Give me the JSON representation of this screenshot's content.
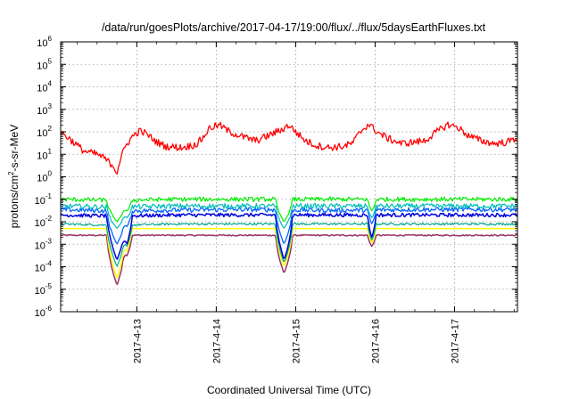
{
  "chart_data": {
    "type": "line",
    "title": "/data/run/goesPlots/archive/2017-04-17/19:00/flux/../flux/5daysEarthFluxes.txt",
    "xlabel": "Coordinated Universal Time (UTC)",
    "ylabel_parts": [
      "protons/cm",
      "2",
      "-s-sr-MeV"
    ],
    "y_scale": "log",
    "ylim": [
      1e-06,
      1000000.0
    ],
    "y_ticks": [
      {
        "base": "10",
        "exp": "-6"
      },
      {
        "base": "10",
        "exp": "-5"
      },
      {
        "base": "10",
        "exp": "-4"
      },
      {
        "base": "10",
        "exp": "-3"
      },
      {
        "base": "10",
        "exp": "-2"
      },
      {
        "base": "10",
        "exp": "-1"
      },
      {
        "base": "10",
        "exp": "0"
      },
      {
        "base": "10",
        "exp": "1"
      },
      {
        "base": "10",
        "exp": "2"
      },
      {
        "base": "10",
        "exp": "3"
      },
      {
        "base": "10",
        "exp": "4"
      },
      {
        "base": "10",
        "exp": "5"
      },
      {
        "base": "10",
        "exp": "6"
      }
    ],
    "xlim": [
      "2017-04-12T01:00",
      "2017-04-17T19:00"
    ],
    "x_ticks": [
      {
        "date": "2017-04-13",
        "label": "2017-4-13"
      },
      {
        "date": "2017-04-14",
        "label": "2017-4-14"
      },
      {
        "date": "2017-04-15",
        "label": "2017-4-15"
      },
      {
        "date": "2017-04-16",
        "label": "2017-4-16"
      },
      {
        "date": "2017-04-17",
        "label": "2017-4-17"
      }
    ],
    "grid": true,
    "series": [
      {
        "color": "#ff0000",
        "points": [
          [
            "2017-04-12T01:00",
            100
          ],
          [
            "2017-04-12T04:00",
            45
          ],
          [
            "2017-04-12T08:00",
            14
          ],
          [
            "2017-04-12T12:00",
            10
          ],
          [
            "2017-04-12T14:00",
            7
          ],
          [
            "2017-04-12T16:00",
            4
          ],
          [
            "2017-04-12T17:00",
            3
          ],
          [
            "2017-04-12T18:00",
            1.5
          ],
          [
            "2017-04-12T19:00",
            6
          ],
          [
            "2017-04-12T21:00",
            30
          ],
          [
            "2017-04-12T23:00",
            70
          ],
          [
            "2017-04-13T01:00",
            110
          ],
          [
            "2017-04-13T03:00",
            80
          ],
          [
            "2017-04-13T06:00",
            35
          ],
          [
            "2017-04-13T09:00",
            22
          ],
          [
            "2017-04-13T14:00",
            20
          ],
          [
            "2017-04-13T18:00",
            28
          ],
          [
            "2017-04-13T20:00",
            55
          ],
          [
            "2017-04-13T22:00",
            150
          ],
          [
            "2017-04-14T01:00",
            200
          ],
          [
            "2017-04-14T04:00",
            100
          ],
          [
            "2017-04-14T08:00",
            60
          ],
          [
            "2017-04-14T12:00",
            40
          ],
          [
            "2017-04-14T16:00",
            70
          ],
          [
            "2017-04-14T20:00",
            130
          ],
          [
            "2017-04-14T22:00",
            200
          ],
          [
            "2017-04-15T00:00",
            100
          ],
          [
            "2017-04-15T03:00",
            40
          ],
          [
            "2017-04-15T06:00",
            25
          ],
          [
            "2017-04-15T10:00",
            20
          ],
          [
            "2017-04-15T14:00",
            22
          ],
          [
            "2017-04-15T17:00",
            30
          ],
          [
            "2017-04-15T20:00",
            120
          ],
          [
            "2017-04-15T22:00",
            220
          ],
          [
            "2017-04-16T01:00",
            90
          ],
          [
            "2017-04-16T04:00",
            50
          ],
          [
            "2017-04-16T08:00",
            30
          ],
          [
            "2017-04-16T12:00",
            35
          ],
          [
            "2017-04-16T15:00",
            40
          ],
          [
            "2017-04-16T19:00",
            110
          ],
          [
            "2017-04-16T22:00",
            210
          ],
          [
            "2017-04-17T01:00",
            160
          ],
          [
            "2017-04-17T04:00",
            70
          ],
          [
            "2017-04-17T08:00",
            40
          ],
          [
            "2017-04-17T12:00",
            30
          ],
          [
            "2017-04-17T16:00",
            35
          ],
          [
            "2017-04-17T19:00",
            55
          ]
        ]
      },
      {
        "color": "#00ee00",
        "points": [
          [
            "2017-04-12T01:00",
            0.1
          ],
          [
            "2017-04-12T18:00",
            0.09
          ],
          [
            "2017-04-13T12:00",
            0.1
          ],
          [
            "2017-04-14T12:00",
            0.1
          ],
          [
            "2017-04-15T12:00",
            0.1
          ],
          [
            "2017-04-16T12:00",
            0.1
          ],
          [
            "2017-04-17T19:00",
            0.1
          ]
        ]
      },
      {
        "color": "#00bbbb",
        "points": [
          [
            "2017-04-12T01:00",
            0.05
          ],
          [
            "2017-04-12T18:00",
            0.045
          ],
          [
            "2017-04-13T12:00",
            0.05
          ],
          [
            "2017-04-14T12:00",
            0.05
          ],
          [
            "2017-04-15T12:00",
            0.05
          ],
          [
            "2017-04-16T12:00",
            0.05
          ],
          [
            "2017-04-17T19:00",
            0.05
          ]
        ]
      },
      {
        "color": "#0066ff",
        "points": [
          [
            "2017-04-12T01:00",
            0.035
          ],
          [
            "2017-04-12T18:00",
            0.03
          ],
          [
            "2017-04-13T12:00",
            0.033
          ],
          [
            "2017-04-14T12:00",
            0.035
          ],
          [
            "2017-04-15T12:00",
            0.032
          ],
          [
            "2017-04-16T12:00",
            0.035
          ],
          [
            "2017-04-17T19:00",
            0.035
          ]
        ]
      },
      {
        "color": "#0000dd",
        "points": [
          [
            "2017-04-12T01:00",
            0.02
          ],
          [
            "2017-04-12T18:00",
            0.018
          ],
          [
            "2017-04-13T12:00",
            0.02
          ],
          [
            "2017-04-14T12:00",
            0.02
          ],
          [
            "2017-04-15T12:00",
            0.02
          ],
          [
            "2017-04-16T12:00",
            0.02
          ],
          [
            "2017-04-17T19:00",
            0.02
          ]
        ]
      },
      {
        "color": "#00aa88",
        "points": [
          [
            "2017-04-12T01:00",
            0.008
          ],
          [
            "2017-04-12T18:00",
            0.007
          ],
          [
            "2017-04-13T12:00",
            0.008
          ],
          [
            "2017-04-14T12:00",
            0.008
          ],
          [
            "2017-04-15T12:00",
            0.008
          ],
          [
            "2017-04-16T12:00",
            0.008
          ],
          [
            "2017-04-17T19:00",
            0.008
          ]
        ]
      },
      {
        "color": "#ffff00",
        "points": [
          [
            "2017-04-12T01:00",
            0.005
          ],
          [
            "2017-04-12T18:00",
            0.005
          ],
          [
            "2017-04-13T12:00",
            0.005
          ],
          [
            "2017-04-14T12:00",
            0.005
          ],
          [
            "2017-04-15T12:00",
            0.005
          ],
          [
            "2017-04-16T12:00",
            0.005
          ],
          [
            "2017-04-17T19:00",
            0.005
          ]
        ]
      },
      {
        "color": "#993366",
        "points": [
          [
            "2017-04-12T01:00",
            0.0025
          ],
          [
            "2017-04-12T18:00",
            0.0025
          ],
          [
            "2017-04-13T12:00",
            0.0025
          ],
          [
            "2017-04-14T12:00",
            0.0025
          ],
          [
            "2017-04-15T12:00",
            0.0025
          ],
          [
            "2017-04-16T12:00",
            0.0025
          ],
          [
            "2017-04-17T19:00",
            0.0025
          ]
        ]
      }
    ],
    "dips": [
      {
        "center": "2017-04-12T18:00",
        "width_hours": 3,
        "values": [
          0.01,
          0.005,
          0.001,
          0.0002,
          0.0001,
          3e-05,
          1.5e-05,
          1.2e-06
        ]
      },
      {
        "center": "2017-04-12T21:00",
        "width_hours": 1.5,
        "values": [
          0.03,
          0.015,
          0.006,
          0.001,
          0.0008,
          0.0005,
          0.0003,
          0.00015
        ]
      },
      {
        "center": "2017-04-14T20:30",
        "width_hours": 2.5,
        "values": [
          0.01,
          0.005,
          0.001,
          0.0002,
          0.00015,
          0.0001,
          5e-05,
          5e-06
        ]
      },
      {
        "center": "2017-04-15T23:00",
        "width_hours": 1.2,
        "values": [
          0.03,
          0.015,
          0.008,
          0.002,
          0.0015,
          0.0012,
          0.0008,
          0.0006
        ]
      }
    ]
  }
}
